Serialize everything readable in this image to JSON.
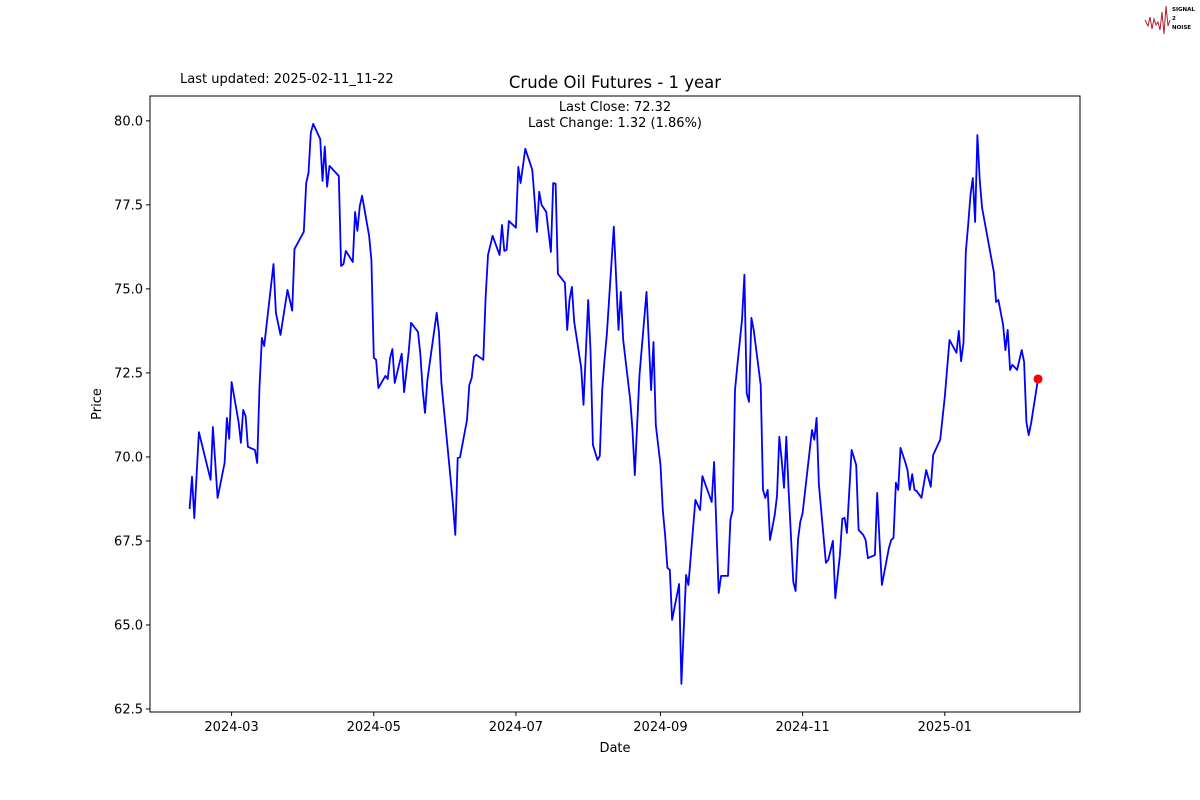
{
  "header": {
    "last_updated": "Last updated: 2025-02-11_11-22"
  },
  "logo": {
    "text": "SIGNAL 2 NOISE",
    "color": "#b01c2e"
  },
  "chart_data": {
    "type": "line",
    "title": "Crude Oil Futures - 1 year",
    "xlabel": "Date",
    "ylabel": "Price",
    "annotations": [
      "Last Close: 72.32",
      "Last Change: 1.32 (1.86%)"
    ],
    "xlim": [
      "2024-01-26",
      "2025-02-28"
    ],
    "ylim": [
      62.41,
      80.74
    ],
    "x_ticks": [
      "2024-03",
      "2024-05",
      "2024-07",
      "2024-09",
      "2024-11",
      "2025-01"
    ],
    "y_ticks": [
      "62.5",
      "65.0",
      "67.5",
      "70.0",
      "72.5",
      "75.0",
      "77.5",
      "80.0"
    ],
    "grid": false,
    "line_color": "#0000ff",
    "marker_color": "#ff0000",
    "last_point": [
      "2025-02-10",
      72.32
    ],
    "points": [
      [
        "2024-02-12",
        68.45
      ],
      [
        "2024-02-13",
        69.41
      ],
      [
        "2024-02-14",
        68.18
      ],
      [
        "2024-02-16",
        70.74
      ],
      [
        "2024-02-21",
        69.32
      ],
      [
        "2024-02-22",
        70.89
      ],
      [
        "2024-02-24",
        68.78
      ],
      [
        "2024-02-27",
        69.82
      ],
      [
        "2024-02-28",
        71.16
      ],
      [
        "2024-02-29",
        70.54
      ],
      [
        "2024-03-01",
        72.23
      ],
      [
        "2024-03-04",
        71.04
      ],
      [
        "2024-03-05",
        70.42
      ],
      [
        "2024-03-06",
        71.4
      ],
      [
        "2024-03-07",
        71.22
      ],
      [
        "2024-03-08",
        70.3
      ],
      [
        "2024-03-11",
        70.21
      ],
      [
        "2024-03-12",
        69.82
      ],
      [
        "2024-03-13",
        72.08
      ],
      [
        "2024-03-14",
        73.54
      ],
      [
        "2024-03-15",
        73.3
      ],
      [
        "2024-03-19",
        75.74
      ],
      [
        "2024-03-20",
        74.29
      ],
      [
        "2024-03-22",
        73.63
      ],
      [
        "2024-03-25",
        74.97
      ],
      [
        "2024-03-27",
        74.35
      ],
      [
        "2024-03-28",
        76.19
      ],
      [
        "2024-04-01",
        76.7
      ],
      [
        "2024-04-02",
        78.15
      ],
      [
        "2024-04-03",
        78.45
      ],
      [
        "2024-04-04",
        79.64
      ],
      [
        "2024-04-05",
        79.91
      ],
      [
        "2024-04-08",
        79.46
      ],
      [
        "2024-04-09",
        78.21
      ],
      [
        "2024-04-10",
        79.23
      ],
      [
        "2024-04-11",
        78.04
      ],
      [
        "2024-04-12",
        78.66
      ],
      [
        "2024-04-16",
        78.36
      ],
      [
        "2024-04-17",
        75.68
      ],
      [
        "2024-04-18",
        75.74
      ],
      [
        "2024-04-19",
        76.13
      ],
      [
        "2024-04-22",
        75.8
      ],
      [
        "2024-04-23",
        77.29
      ],
      [
        "2024-04-24",
        76.73
      ],
      [
        "2024-04-25",
        77.47
      ],
      [
        "2024-04-26",
        77.77
      ],
      [
        "2024-04-29",
        76.58
      ],
      [
        "2024-04-30",
        75.86
      ],
      [
        "2024-05-01",
        72.95
      ],
      [
        "2024-05-02",
        72.89
      ],
      [
        "2024-05-03",
        72.05
      ],
      [
        "2024-05-06",
        72.41
      ],
      [
        "2024-05-07",
        72.32
      ],
      [
        "2024-05-08",
        72.95
      ],
      [
        "2024-05-09",
        73.21
      ],
      [
        "2024-05-10",
        72.2
      ],
      [
        "2024-05-13",
        73.07
      ],
      [
        "2024-05-14",
        71.93
      ],
      [
        "2024-05-16",
        73.13
      ],
      [
        "2024-05-17",
        73.99
      ],
      [
        "2024-05-20",
        73.72
      ],
      [
        "2024-05-21",
        73.04
      ],
      [
        "2024-05-22",
        71.99
      ],
      [
        "2024-05-23",
        71.31
      ],
      [
        "2024-05-24",
        72.29
      ],
      [
        "2024-05-28",
        74.29
      ],
      [
        "2024-05-29",
        73.69
      ],
      [
        "2024-05-30",
        72.2
      ],
      [
        "2024-06-03",
        69.32
      ],
      [
        "2024-06-04",
        68.57
      ],
      [
        "2024-06-05",
        67.68
      ],
      [
        "2024-06-06",
        69.97
      ],
      [
        "2024-06-07",
        69.99
      ],
      [
        "2024-06-10",
        71.1
      ],
      [
        "2024-06-11",
        72.14
      ],
      [
        "2024-06-12",
        72.35
      ],
      [
        "2024-06-13",
        72.98
      ],
      [
        "2024-06-14",
        73.04
      ],
      [
        "2024-06-17",
        72.89
      ],
      [
        "2024-06-18",
        74.73
      ],
      [
        "2024-06-19",
        76.01
      ],
      [
        "2024-06-21",
        76.58
      ],
      [
        "2024-06-24",
        76.01
      ],
      [
        "2024-06-25",
        76.9
      ],
      [
        "2024-06-26",
        76.13
      ],
      [
        "2024-06-27",
        76.16
      ],
      [
        "2024-06-28",
        77.02
      ],
      [
        "2024-07-01",
        76.82
      ],
      [
        "2024-07-02",
        78.63
      ],
      [
        "2024-07-03",
        78.15
      ],
      [
        "2024-07-05",
        79.17
      ],
      [
        "2024-07-08",
        78.54
      ],
      [
        "2024-07-09",
        77.65
      ],
      [
        "2024-07-10",
        76.7
      ],
      [
        "2024-07-11",
        77.89
      ],
      [
        "2024-07-12",
        77.5
      ],
      [
        "2024-07-14",
        77.29
      ],
      [
        "2024-07-16",
        76.1
      ],
      [
        "2024-07-17",
        78.15
      ],
      [
        "2024-07-18",
        78.13
      ],
      [
        "2024-07-19",
        75.45
      ],
      [
        "2024-07-22",
        75.18
      ],
      [
        "2024-07-23",
        73.78
      ],
      [
        "2024-07-24",
        74.67
      ],
      [
        "2024-07-25",
        75.06
      ],
      [
        "2024-07-26",
        74.02
      ],
      [
        "2024-07-29",
        72.65
      ],
      [
        "2024-07-30",
        71.55
      ],
      [
        "2024-08-01",
        74.67
      ],
      [
        "2024-08-02",
        73.18
      ],
      [
        "2024-08-03",
        70.36
      ],
      [
        "2024-08-05",
        69.91
      ],
      [
        "2024-08-06",
        70.03
      ],
      [
        "2024-08-07",
        71.99
      ],
      [
        "2024-08-08",
        72.89
      ],
      [
        "2024-08-09",
        73.63
      ],
      [
        "2024-08-12",
        76.85
      ],
      [
        "2024-08-14",
        73.78
      ],
      [
        "2024-08-15",
        74.91
      ],
      [
        "2024-08-16",
        73.48
      ],
      [
        "2024-08-19",
        71.7
      ],
      [
        "2024-08-20",
        70.8
      ],
      [
        "2024-08-21",
        69.46
      ],
      [
        "2024-08-23",
        72.44
      ],
      [
        "2024-08-26",
        74.91
      ],
      [
        "2024-08-28",
        71.99
      ],
      [
        "2024-08-29",
        73.42
      ],
      [
        "2024-08-30",
        70.95
      ],
      [
        "2024-09-01",
        69.76
      ],
      [
        "2024-09-02",
        68.42
      ],
      [
        "2024-09-03",
        67.68
      ],
      [
        "2024-09-04",
        66.7
      ],
      [
        "2024-09-05",
        66.64
      ],
      [
        "2024-09-06",
        65.15
      ],
      [
        "2024-09-09",
        66.22
      ],
      [
        "2024-09-10",
        63.25
      ],
      [
        "2024-09-12",
        66.49
      ],
      [
        "2024-09-13",
        66.19
      ],
      [
        "2024-09-16",
        68.72
      ],
      [
        "2024-09-18",
        68.42
      ],
      [
        "2024-09-19",
        69.43
      ],
      [
        "2024-09-23",
        68.66
      ],
      [
        "2024-09-24",
        69.85
      ],
      [
        "2024-09-26",
        65.95
      ],
      [
        "2024-09-27",
        66.46
      ],
      [
        "2024-09-30",
        66.46
      ],
      [
        "2024-10-01",
        68.13
      ],
      [
        "2024-10-02",
        68.42
      ],
      [
        "2024-10-03",
        71.99
      ],
      [
        "2024-10-04",
        72.74
      ],
      [
        "2024-10-06",
        74.08
      ],
      [
        "2024-10-07",
        75.42
      ],
      [
        "2024-10-08",
        71.9
      ],
      [
        "2024-10-09",
        71.64
      ],
      [
        "2024-10-10",
        74.14
      ],
      [
        "2024-10-11",
        73.78
      ],
      [
        "2024-10-14",
        72.14
      ],
      [
        "2024-10-15",
        69.02
      ],
      [
        "2024-10-16",
        68.78
      ],
      [
        "2024-10-17",
        69.02
      ],
      [
        "2024-10-18",
        67.53
      ],
      [
        "2024-10-20",
        68.27
      ],
      [
        "2024-10-21",
        68.84
      ],
      [
        "2024-10-22",
        70.6
      ],
      [
        "2024-10-23",
        69.91
      ],
      [
        "2024-10-24",
        69.08
      ],
      [
        "2024-10-25",
        70.6
      ],
      [
        "2024-10-26",
        69.02
      ],
      [
        "2024-10-28",
        66.28
      ],
      [
        "2024-10-29",
        66.01
      ],
      [
        "2024-10-30",
        67.53
      ],
      [
        "2024-10-31",
        68.07
      ],
      [
        "2024-11-01",
        68.33
      ],
      [
        "2024-11-05",
        70.8
      ],
      [
        "2024-11-06",
        70.51
      ],
      [
        "2024-11-07",
        71.16
      ],
      [
        "2024-11-08",
        69.17
      ],
      [
        "2024-11-11",
        66.85
      ],
      [
        "2024-11-12",
        66.94
      ],
      [
        "2024-11-14",
        67.5
      ],
      [
        "2024-11-15",
        65.8
      ],
      [
        "2024-11-17",
        67.08
      ],
      [
        "2024-11-18",
        68.16
      ],
      [
        "2024-11-19",
        68.19
      ],
      [
        "2024-11-20",
        67.74
      ],
      [
        "2024-11-22",
        70.21
      ],
      [
        "2024-11-24",
        69.76
      ],
      [
        "2024-11-25",
        67.83
      ],
      [
        "2024-11-27",
        67.68
      ],
      [
        "2024-11-28",
        67.53
      ],
      [
        "2024-11-29",
        66.99
      ],
      [
        "2024-12-02",
        67.08
      ],
      [
        "2024-12-03",
        68.93
      ],
      [
        "2024-12-04",
        67.53
      ],
      [
        "2024-12-05",
        66.19
      ],
      [
        "2024-12-08",
        67.29
      ],
      [
        "2024-12-09",
        67.53
      ],
      [
        "2024-12-10",
        67.59
      ],
      [
        "2024-12-11",
        69.23
      ],
      [
        "2024-12-12",
        69.02
      ],
      [
        "2024-12-13",
        70.27
      ],
      [
        "2024-12-15",
        69.85
      ],
      [
        "2024-12-16",
        69.61
      ],
      [
        "2024-12-17",
        69.02
      ],
      [
        "2024-12-18",
        69.49
      ],
      [
        "2024-12-19",
        69.02
      ],
      [
        "2024-12-20",
        68.98
      ],
      [
        "2024-12-22",
        68.78
      ],
      [
        "2024-12-24",
        69.61
      ],
      [
        "2024-12-26",
        69.11
      ],
      [
        "2024-12-27",
        70.06
      ],
      [
        "2024-12-30",
        70.51
      ],
      [
        "2025-01-01",
        71.79
      ],
      [
        "2025-01-03",
        73.48
      ],
      [
        "2025-01-06",
        73.1
      ],
      [
        "2025-01-07",
        73.75
      ],
      [
        "2025-01-08",
        72.85
      ],
      [
        "2025-01-09",
        73.4
      ],
      [
        "2025-01-10",
        76.1
      ],
      [
        "2025-01-11",
        76.88
      ],
      [
        "2025-01-12",
        77.8
      ],
      [
        "2025-01-13",
        78.3
      ],
      [
        "2025-01-14",
        76.99
      ],
      [
        "2025-01-15",
        79.58
      ],
      [
        "2025-01-16",
        78.21
      ],
      [
        "2025-01-17",
        77.41
      ],
      [
        "2025-01-22",
        75.51
      ],
      [
        "2025-01-23",
        74.61
      ],
      [
        "2025-01-24",
        74.67
      ],
      [
        "2025-01-26",
        73.93
      ],
      [
        "2025-01-27",
        73.18
      ],
      [
        "2025-01-28",
        73.78
      ],
      [
        "2025-01-29",
        72.59
      ],
      [
        "2025-01-30",
        72.74
      ],
      [
        "2025-02-01",
        72.59
      ],
      [
        "2025-02-03",
        73.18
      ],
      [
        "2025-02-04",
        72.83
      ],
      [
        "2025-02-05",
        71.04
      ],
      [
        "2025-02-06",
        70.65
      ],
      [
        "2025-02-07",
        71.0
      ],
      [
        "2025-02-10",
        72.32
      ]
    ]
  }
}
